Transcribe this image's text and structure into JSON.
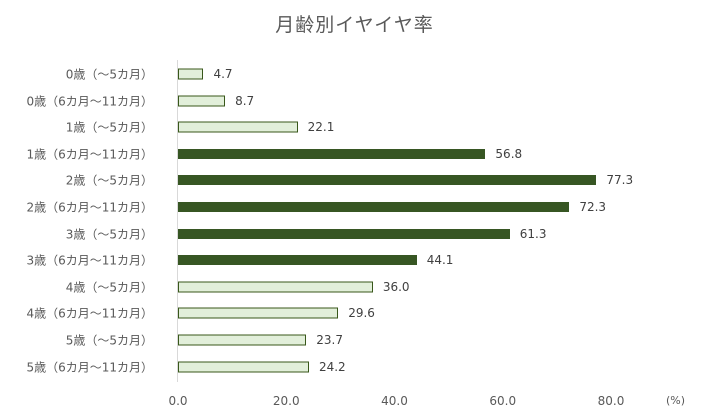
{
  "chart_data": {
    "type": "bar",
    "orientation": "horizontal",
    "title": "月齢別イヤイヤ率",
    "xlabel": "",
    "ylabel": "",
    "unit_label": "(%)",
    "xlim": [
      0,
      80
    ],
    "x_ticks": [
      "0.0",
      "20.0",
      "40.0",
      "60.0",
      "80.0"
    ],
    "grid": false,
    "legend": null,
    "categories": [
      "0歳（〜5カ月）",
      "0歳（6カ月〜11カ月）",
      "1歳（〜5カ月）",
      "1歳（6カ月〜11カ月）",
      "2歳（〜5カ月）",
      "2歳（6カ月〜11カ月）",
      "3歳（〜5カ月）",
      "3歳（6カ月〜11カ月）",
      "4歳（〜5カ月）",
      "4歳（6カ月〜11カ月）",
      "5歳（〜5カ月）",
      "5歳（6カ月〜11カ月）"
    ],
    "values": [
      4.7,
      8.7,
      22.1,
      56.8,
      77.3,
      72.3,
      61.3,
      44.1,
      36.0,
      29.6,
      23.7,
      24.2
    ],
    "value_labels": [
      "4.7",
      "8.7",
      "22.1",
      "56.8",
      "77.3",
      "72.3",
      "61.3",
      "44.1",
      "36.0",
      "29.6",
      "23.7",
      "24.2"
    ],
    "highlight": [
      false,
      false,
      false,
      true,
      true,
      true,
      true,
      true,
      false,
      false,
      false,
      false
    ],
    "colors": {
      "highlight_fill": "#375623",
      "normal_fill": "#e2efda",
      "normal_border": "#38571a"
    }
  }
}
